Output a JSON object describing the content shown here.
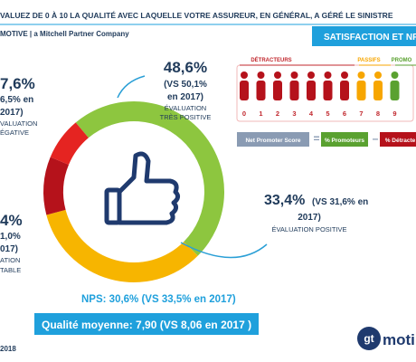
{
  "header": {
    "question": "VALUEZ DE 0 À 10 LA QUALITÉ AVEC LAQUELLE VOTRE ASSUREUR, EN GÉNÉRAL, A GÉRÉ LE SINISTRE",
    "company": "MOTIVE | a Mitchell Partner Company",
    "section": "SATISFACTION ET NP"
  },
  "donut": {
    "values": [
      48.6,
      33.4,
      10.4,
      7.6
    ],
    "colors": [
      "#8dc63f",
      "#f7b500",
      "#b5121b",
      "#e52421"
    ]
  },
  "labels": {
    "top": [
      "48,6%",
      "(VS 50,1%",
      "en 2017)",
      "ÉVALUATION",
      "TRÈS POSITIVE"
    ],
    "right": [
      "33,4%",
      " (VS 31,6% en",
      "2017)",
      "ÉVALUATION POSITIVE"
    ],
    "left_top": [
      "7,6%",
      "6,5% en",
      "2017)",
      "VALUATION",
      "ÉGATIVE"
    ],
    "left_bottom": [
      "4%",
      "1,0%",
      "017)",
      "ATION",
      "TABLE"
    ]
  },
  "nps_panel": {
    "groups": [
      "DÉTRACTEURS",
      "PASSIFS",
      "PROMO"
    ],
    "scale": [
      "0",
      "1",
      "2",
      "3",
      "4",
      "5",
      "6",
      "7",
      "8",
      "9"
    ],
    "formula": [
      "Net Promoter Score",
      "=",
      "% Promoteurs",
      "–",
      "% Détracte"
    ]
  },
  "summary": {
    "nps": "NPS: 30,6% (VS 33,5% en 2017)",
    "quality": "Qualité moyenne: 7,90 (VS 8,06 en 2017 )"
  },
  "footer": {
    "year": "2018",
    "logo": "gt",
    "logo_text": "moti"
  }
}
